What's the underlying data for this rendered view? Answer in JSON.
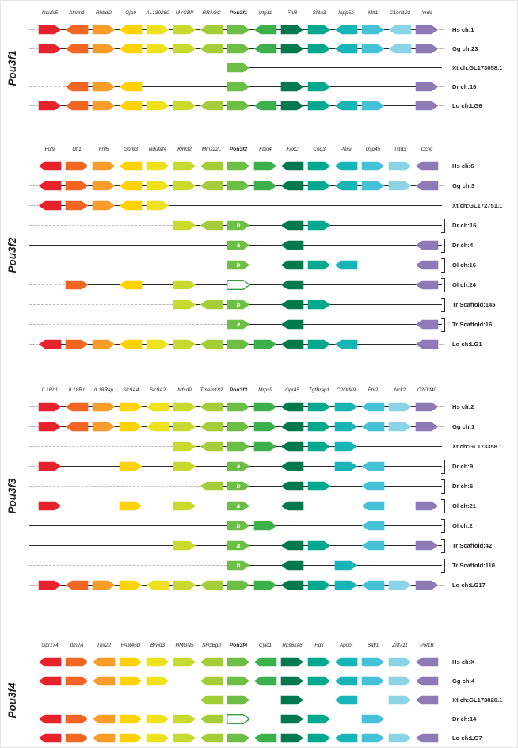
{
  "figure": {
    "background": "#ffffff",
    "line_color": "#2a2a2a",
    "dash_color": "#bcbcbc",
    "open_arrow_border": "#3b9c43",
    "letter_color": "#ffffff",
    "column_colors": [
      "#e8222d",
      "#f26522",
      "#f89d2a",
      "#ffd200",
      "#ede21c",
      "#c8da2f",
      "#a3cd39",
      "#6cbe45",
      "#3cb14b",
      "#00794e",
      "#00a98c",
      "#18b5b8",
      "#45c2d7",
      "#8ad4e6",
      "#8d7ab7"
    ],
    "panels": [
      {
        "name": "Pou3f1",
        "genes": [
          "Ndufs5",
          "Akirin1",
          "Rhbdl2",
          "Gja9",
          "AL139260",
          "MYCBP",
          "RRAGC",
          "Pou3f1",
          "Utp11",
          "Fhl3",
          "Sf3a3",
          "Inpp5b",
          "Mtf1",
          "C1orf122",
          "Yrdc"
        ],
        "pou_index": 7,
        "dirs": [
          "R",
          "L",
          "R",
          "L",
          "R",
          "R",
          "L",
          "R",
          "L",
          "R",
          "R",
          "L",
          "R",
          "L",
          "R"
        ],
        "rows": [
          {
            "label": "Hs ch:1",
            "genes": [
              0,
              1,
              2,
              3,
              4,
              5,
              6,
              7,
              8,
              9,
              10,
              11,
              12,
              13,
              14
            ]
          },
          {
            "label": "Gg ch:23",
            "genes": [
              0,
              1,
              2,
              3,
              4,
              5,
              6,
              7,
              8,
              9,
              10,
              11,
              12,
              13,
              14
            ]
          },
          {
            "label": "Xt ch:GL173058.1",
            "genes": [
              7
            ],
            "solid_right": true,
            "dash_left": false
          },
          {
            "label": "Dr ch:16",
            "genes": [
              1,
              2,
              3,
              7,
              9,
              10,
              14
            ]
          },
          {
            "label": "Lo ch:LG6",
            "genes": [
              0,
              1,
              2,
              3,
              4,
              5,
              6,
              7,
              8,
              9,
              10,
              11,
              12,
              14
            ]
          }
        ]
      },
      {
        "name": "Pou3f2",
        "genes": [
          "Fut9",
          "Ufl1",
          "Fhl5",
          "Gpr63",
          "Ndufaf4",
          "Klhl32",
          "Mms22L",
          "Pou3f2",
          "Fbxl4",
          "FaxC",
          "Coq3",
          "Pnisr",
          "Usp45",
          "Tstd3",
          "Ccnc"
        ],
        "pou_index": 7,
        "dirs": [
          "L",
          "R",
          "R",
          "L",
          "R",
          "R",
          "L",
          "R",
          "R",
          "L",
          "R",
          "L",
          "R",
          "R",
          "L"
        ],
        "rows": [
          {
            "label": "Hs ch:6",
            "genes": [
              0,
              1,
              2,
              3,
              4,
              5,
              6,
              7,
              8,
              9,
              10,
              11,
              12,
              13,
              14
            ]
          },
          {
            "label": "Gg ch:3",
            "genes": [
              0,
              1,
              2,
              3,
              4,
              5,
              6,
              7,
              8,
              9,
              10,
              11,
              12,
              13,
              14
            ]
          },
          {
            "label": "Xt ch:GL172751.1",
            "genes": [
              0,
              1,
              2,
              3,
              4
            ],
            "solid_right": true
          },
          {
            "label": "Dr ch:16",
            "genes": [
              5,
              6,
              {
                "c": 7,
                "t": "b"
              },
              9,
              10
            ],
            "solid_right": true,
            "bracket": true
          },
          {
            "label": "Dr ch:4",
            "genes": [
              {
                "c": 7,
                "t": "a"
              },
              9,
              14
            ],
            "solid_left": true,
            "solid_right": true,
            "bracket": true
          },
          {
            "label": "Ol ch:16",
            "genes": [
              {
                "c": 7,
                "t": "b"
              },
              9,
              10,
              11,
              14
            ],
            "solid_left": true,
            "solid_right": true,
            "bracket": true
          },
          {
            "label": "Ol ch:24",
            "genes": [
              1,
              3,
              5,
              {
                "c": 7,
                "o": true
              },
              9,
              14
            ],
            "solid_right": true,
            "bracket": true
          },
          {
            "label": "Tr Scaffold:145",
            "genes": [
              5,
              6,
              {
                "c": 7,
                "t": "b"
              },
              9,
              10
            ],
            "solid_right": true,
            "bracket": true
          },
          {
            "label": "Tr Scaffold:16",
            "genes": [
              {
                "c": 7,
                "t": "a"
              },
              9,
              14
            ],
            "solid_right": true,
            "bracket": true
          },
          {
            "label": "Lo ch:LG1",
            "genes": [
              0,
              1,
              2,
              3,
              4,
              5,
              6,
              7,
              8,
              9,
              10,
              11,
              14
            ]
          }
        ]
      },
      {
        "name": "Pou3f3",
        "genes": [
          "IL1RL1",
          "IL18R1",
          "IL18Rap",
          "Slc9A4",
          "Slc9A2",
          "Mfsd9",
          "Tmem182",
          "Pou3f3",
          "Mrps9",
          "Gpr45",
          "TgfBrap1",
          "C2Orf49",
          "Fhl2",
          "Nck2",
          "C2Orf40"
        ],
        "pou_index": 7,
        "dirs": [
          "R",
          "L",
          "R",
          "R",
          "L",
          "R",
          "L",
          "R",
          "R",
          "L",
          "R",
          "R",
          "L",
          "R",
          "R"
        ],
        "rows": [
          {
            "label": "Hs ch:2",
            "genes": [
              0,
              1,
              2,
              3,
              4,
              5,
              6,
              7,
              8,
              9,
              10,
              11,
              12,
              13,
              14
            ]
          },
          {
            "label": "Gg ch:1",
            "genes": [
              0,
              1,
              2,
              3,
              4,
              5,
              6,
              7,
              8,
              9,
              10,
              11,
              12,
              13,
              14
            ]
          },
          {
            "label": "Xt ch:GL173358.1",
            "genes": [
              5,
              6,
              7,
              8,
              9,
              10,
              11
            ],
            "solid_right": true
          },
          {
            "label": "Dr ch:9",
            "genes": [
              0,
              3,
              5,
              {
                "c": 7,
                "t": "a"
              },
              9,
              11,
              12
            ],
            "solid_right": true,
            "bracket": true
          },
          {
            "label": "Dr ch:6",
            "genes": [
              6,
              {
                "c": 7,
                "t": "b"
              },
              9,
              10,
              12
            ],
            "solid_right": true,
            "bracket": true
          },
          {
            "label": "Ol ch:21",
            "genes": [
              0,
              3,
              5,
              {
                "c": 7,
                "t": "a"
              },
              9,
              12,
              14
            ],
            "solid_right": true,
            "bracket": true
          },
          {
            "label": "Ol ch:2",
            "genes": [
              {
                "c": 7,
                "t": "b"
              },
              8,
              12
            ],
            "solid_left": true,
            "solid_right": true,
            "bracket": true
          },
          {
            "label": "Tr Scaffold:42",
            "genes": [
              5,
              {
                "c": 7,
                "t": "a"
              },
              9,
              10,
              12,
              14
            ],
            "solid_left": true,
            "solid_right": true,
            "bracket": true
          },
          {
            "label": "Tr Scaffold:110",
            "genes": [
              {
                "c": 7,
                "t": "b"
              },
              9,
              11
            ],
            "solid_right": true,
            "bracket": true
          },
          {
            "label": "Lo ch:LG17",
            "genes": [
              0,
              1,
              2,
              3,
              4,
              5,
              6,
              7,
              8,
              9,
              10,
              11,
              12,
              13,
              14
            ]
          }
        ]
      },
      {
        "name": "Pou3f4",
        "genes": [
          "Gpr174",
          "Itm2A",
          "Tbx22",
          "FAM46D",
          "Brwd3",
          "HMGN5",
          "SH3Bgrl",
          "Pou3f4",
          "Cylc1",
          "Rps6ka6",
          "Hdx",
          "Apool",
          "Satl1",
          "Znf711",
          "Pof1B"
        ],
        "pou_index": 7,
        "dirs": [
          "L",
          "R",
          "L",
          "R",
          "R",
          "R",
          "L",
          "R",
          "L",
          "R",
          "R",
          "L",
          "R",
          "R",
          "L"
        ],
        "rows": [
          {
            "label": "Hs ch:X",
            "genes": [
              0,
              1,
              2,
              3,
              4,
              5,
              6,
              7,
              8,
              9,
              10,
              11,
              12,
              13,
              14
            ]
          },
          {
            "label": "Gg ch:4",
            "genes": [
              0,
              1,
              2,
              3,
              4,
              6,
              7,
              8,
              9,
              10,
              11,
              12,
              13,
              14
            ]
          },
          {
            "label": "Xt ch:GL173020.1",
            "genes": [
              6,
              7,
              9,
              11,
              13,
              14
            ]
          },
          {
            "label": "Dr ch:14",
            "genes": [
              0,
              1,
              2,
              3,
              4,
              5,
              6,
              {
                "c": 7,
                "o": true
              },
              9,
              10,
              12
            ]
          },
          {
            "label": "Lo ch:LG7",
            "genes": [
              0,
              1,
              2,
              3,
              4,
              5,
              6,
              7,
              8,
              9,
              10,
              11,
              12,
              13,
              14
            ]
          }
        ]
      }
    ]
  }
}
